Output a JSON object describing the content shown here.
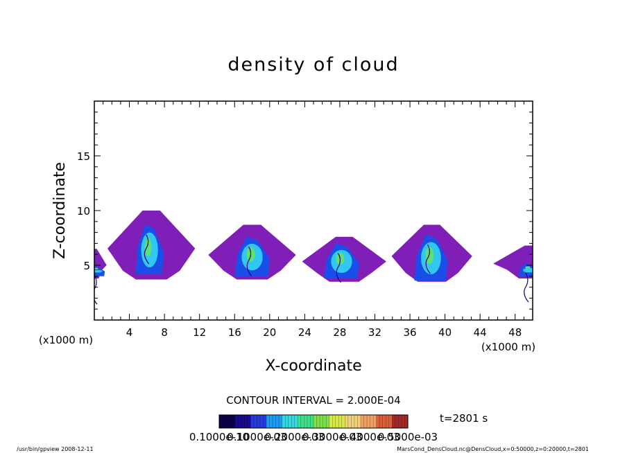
{
  "chart_data": {
    "type": "heatmap",
    "title": "density of cloud",
    "xlabel": "X-coordinate",
    "ylabel": "Z-coordinate",
    "x_unit": "(x1000 m)",
    "y_unit": "(x1000 m)",
    "xlim": [
      0,
      50
    ],
    "ylim": [
      0,
      20
    ],
    "x_ticks": [
      "4",
      "8",
      "12",
      "16",
      "20",
      "24",
      "28",
      "32",
      "36",
      "40",
      "44",
      "48"
    ],
    "y_ticks": [
      "5",
      "10",
      "15"
    ],
    "contour_interval_text": "CONTOUR INTERVAL = 2.000E-04",
    "time_text": "t=2801 s",
    "colorbar_labels": [
      "0.1000e-10",
      "0.1000e-03",
      "0.2000e-03",
      "0.3000e-03",
      "0.4000e-03",
      "0.5000e-03"
    ],
    "colorbar_colors": [
      "#08004a",
      "#1a0a8c",
      "#2a3ad8",
      "#1f9cf0",
      "#38d7e0",
      "#3fe08a",
      "#7ee04a",
      "#d8e84a",
      "#f0d07a",
      "#f0a060",
      "#d8603a",
      "#a02a2a"
    ],
    "cloud_colors": {
      "outer": "#7f1fb8",
      "blue": "#1a4ee8",
      "cyan": "#30c8f0",
      "green": "#60e070",
      "dark": "#1a0070"
    },
    "cells": [
      {
        "x": 6.5,
        "base": 3.7,
        "top": 10.0,
        "half_width": 5.0,
        "core_x": 6.3,
        "core_top": 8.7,
        "core_base": 4.2,
        "core_half_width": 1.6
      },
      {
        "x": 18.0,
        "base": 3.7,
        "top": 8.7,
        "half_width": 5.0,
        "core_x": 18.0,
        "core_top": 7.6,
        "core_base": 4.0,
        "core_half_width": 2.0
      },
      {
        "x": 28.5,
        "base": 3.5,
        "top": 7.6,
        "half_width": 4.8,
        "core_x": 28.2,
        "core_top": 7.0,
        "core_base": 3.8,
        "core_half_width": 2.0
      },
      {
        "x": 38.5,
        "base": 3.5,
        "top": 8.7,
        "half_width": 4.6,
        "core_x": 38.4,
        "core_top": 7.8,
        "core_base": 3.6,
        "core_half_width": 1.9
      },
      {
        "x": 50.0,
        "base": 3.8,
        "top": 6.8,
        "half_width": 4.5,
        "core_x": 49.6,
        "core_top": 5.2,
        "core_base": 4.0,
        "core_half_width": 1.2
      },
      {
        "x": 0.0,
        "base": 3.8,
        "top": 6.5,
        "half_width": 1.4,
        "core_x": 0.4,
        "core_top": 5.0,
        "core_base": 4.0,
        "core_half_width": 0.8
      }
    ]
  },
  "footer": {
    "left": "/usr/bin/gpview   2008-12-11",
    "right": "MarsCond_DensCloud.nc@DensCloud,x=0:50000,z=0:20000,t=2801"
  }
}
